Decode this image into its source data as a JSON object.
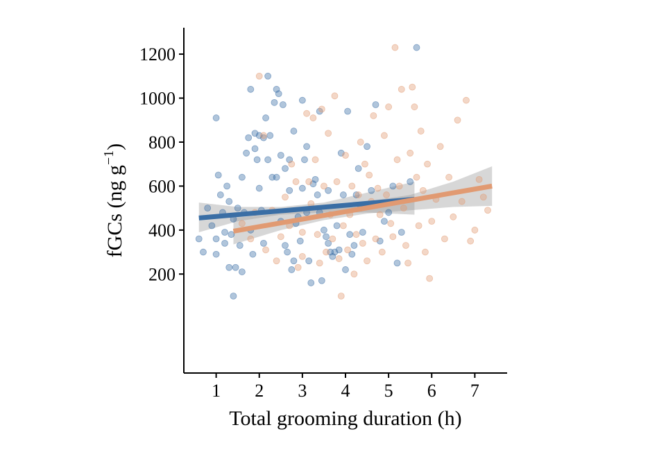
{
  "chart_data": {
    "type": "scatter",
    "title": "",
    "xlabel": "Total grooming duration (h)",
    "ylabel_main": "fGCs (ng g",
    "ylabel_sup": "−1",
    "ylabel_close": ")",
    "xlim": [
      0.25,
      7.75
    ],
    "ylim": [
      -250,
      1320
    ],
    "xticks": [
      1,
      2,
      3,
      4,
      5,
      6,
      7
    ],
    "yticks": [
      200,
      400,
      600,
      800,
      1000,
      1200
    ],
    "grid": false,
    "legend": "none",
    "series": [
      {
        "color": "#3a6ea5",
        "fit": {
          "x": [
            0.6,
            5.6
          ],
          "y": [
            455,
            540
          ]
        },
        "band": {
          "x": [
            0.6,
            1.5,
            2.5,
            3.5,
            4.5,
            5.6
          ],
          "lower": [
            390,
            440,
            470,
            480,
            480,
            470
          ],
          "upper": [
            525,
            505,
            505,
            525,
            570,
            620
          ]
        },
        "points": [
          [
            0.6,
            360
          ],
          [
            0.7,
            300
          ],
          [
            0.8,
            500
          ],
          [
            0.9,
            420
          ],
          [
            1.0,
            910
          ],
          [
            1.0,
            360
          ],
          [
            1.0,
            290
          ],
          [
            1.05,
            650
          ],
          [
            1.1,
            560
          ],
          [
            1.15,
            480
          ],
          [
            1.2,
            390
          ],
          [
            1.2,
            340
          ],
          [
            1.25,
            600
          ],
          [
            1.3,
            230
          ],
          [
            1.3,
            530
          ],
          [
            1.35,
            380
          ],
          [
            1.4,
            100
          ],
          [
            1.4,
            450
          ],
          [
            1.45,
            230
          ],
          [
            1.5,
            500
          ],
          [
            1.55,
            330
          ],
          [
            1.6,
            210
          ],
          [
            1.6,
            640
          ],
          [
            1.65,
            480
          ],
          [
            1.7,
            750
          ],
          [
            1.75,
            820
          ],
          [
            1.8,
            1040
          ],
          [
            1.8,
            400
          ],
          [
            1.85,
            290
          ],
          [
            1.9,
            840
          ],
          [
            1.9,
            770
          ],
          [
            1.95,
            720
          ],
          [
            2.0,
            830
          ],
          [
            2.0,
            590
          ],
          [
            2.05,
            490
          ],
          [
            2.1,
            340
          ],
          [
            2.1,
            820
          ],
          [
            2.15,
            910
          ],
          [
            2.2,
            720
          ],
          [
            2.2,
            1100
          ],
          [
            2.25,
            830
          ],
          [
            2.3,
            640
          ],
          [
            2.35,
            980
          ],
          [
            2.4,
            1040
          ],
          [
            2.4,
            640
          ],
          [
            2.45,
            1020
          ],
          [
            2.5,
            740
          ],
          [
            2.5,
            440
          ],
          [
            2.55,
            970
          ],
          [
            2.6,
            680
          ],
          [
            2.6,
            330
          ],
          [
            2.65,
            300
          ],
          [
            2.7,
            580
          ],
          [
            2.7,
            720
          ],
          [
            2.75,
            220
          ],
          [
            2.8,
            850
          ],
          [
            2.8,
            260
          ],
          [
            2.85,
            430
          ],
          [
            2.9,
            460
          ],
          [
            2.95,
            350
          ],
          [
            3.0,
            990
          ],
          [
            3.0,
            590
          ],
          [
            3.05,
            720
          ],
          [
            3.1,
            780
          ],
          [
            3.1,
            480
          ],
          [
            3.15,
            260
          ],
          [
            3.2,
            160
          ],
          [
            3.25,
            610
          ],
          [
            3.3,
            630
          ],
          [
            3.35,
            560
          ],
          [
            3.4,
            940
          ],
          [
            3.4,
            480
          ],
          [
            3.45,
            170
          ],
          [
            3.5,
            400
          ],
          [
            3.55,
            370
          ],
          [
            3.6,
            580
          ],
          [
            3.6,
            340
          ],
          [
            3.65,
            300
          ],
          [
            3.7,
            280
          ],
          [
            3.75,
            300
          ],
          [
            3.8,
            420
          ],
          [
            3.85,
            310
          ],
          [
            3.9,
            750
          ],
          [
            3.95,
            560
          ],
          [
            4.0,
            220
          ],
          [
            4.05,
            940
          ],
          [
            4.1,
            380
          ],
          [
            4.15,
            290
          ],
          [
            4.2,
            330
          ],
          [
            4.25,
            560
          ],
          [
            4.3,
            680
          ],
          [
            4.35,
            500
          ],
          [
            4.4,
            390
          ],
          [
            4.5,
            780
          ],
          [
            4.6,
            580
          ],
          [
            4.7,
            970
          ],
          [
            4.8,
            350
          ],
          [
            4.9,
            440
          ],
          [
            5.0,
            480
          ],
          [
            5.1,
            600
          ],
          [
            5.2,
            250
          ],
          [
            5.3,
            390
          ],
          [
            5.5,
            620
          ],
          [
            5.65,
            1230
          ]
        ]
      },
      {
        "color": "#e19a72",
        "fit": {
          "x": [
            1.4,
            7.4
          ],
          "y": [
            395,
            600
          ]
        },
        "band": {
          "x": [
            1.4,
            2.5,
            3.5,
            4.5,
            5.5,
            6.5,
            7.4
          ],
          "lower": [
            335,
            400,
            445,
            475,
            490,
            505,
            510
          ],
          "upper": [
            455,
            475,
            505,
            530,
            560,
            620,
            690
          ]
        },
        "points": [
          [
            1.6,
            430
          ],
          [
            1.8,
            360
          ],
          [
            1.9,
            480
          ],
          [
            2.0,
            1100
          ],
          [
            2.1,
            830
          ],
          [
            2.15,
            310
          ],
          [
            2.3,
            490
          ],
          [
            2.4,
            260
          ],
          [
            2.5,
            370
          ],
          [
            2.6,
            550
          ],
          [
            2.7,
            420
          ],
          [
            2.75,
            700
          ],
          [
            2.85,
            620
          ],
          [
            2.9,
            230
          ],
          [
            3.0,
            390
          ],
          [
            3.0,
            280
          ],
          [
            3.1,
            930
          ],
          [
            3.15,
            620
          ],
          [
            3.2,
            520
          ],
          [
            3.25,
            910
          ],
          [
            3.3,
            720
          ],
          [
            3.35,
            380
          ],
          [
            3.4,
            250
          ],
          [
            3.45,
            950
          ],
          [
            3.5,
            600
          ],
          [
            3.55,
            300
          ],
          [
            3.6,
            840
          ],
          [
            3.65,
            470
          ],
          [
            3.7,
            360
          ],
          [
            3.75,
            1010
          ],
          [
            3.8,
            620
          ],
          [
            3.85,
            270
          ],
          [
            3.9,
            100
          ],
          [
            3.95,
            420
          ],
          [
            4.0,
            740
          ],
          [
            4.05,
            310
          ],
          [
            4.1,
            470
          ],
          [
            4.15,
            600
          ],
          [
            4.2,
            200
          ],
          [
            4.25,
            380
          ],
          [
            4.3,
            560
          ],
          [
            4.35,
            800
          ],
          [
            4.4,
            340
          ],
          [
            4.45,
            700
          ],
          [
            4.5,
            260
          ],
          [
            4.55,
            650
          ],
          [
            4.6,
            530
          ],
          [
            4.65,
            920
          ],
          [
            4.7,
            360
          ],
          [
            4.75,
            590
          ],
          [
            4.8,
            470
          ],
          [
            4.85,
            300
          ],
          [
            4.9,
            830
          ],
          [
            4.95,
            560
          ],
          [
            5.0,
            960
          ],
          [
            5.05,
            430
          ],
          [
            5.1,
            370
          ],
          [
            5.15,
            1230
          ],
          [
            5.2,
            720
          ],
          [
            5.25,
            600
          ],
          [
            5.3,
            1040
          ],
          [
            5.35,
            500
          ],
          [
            5.4,
            330
          ],
          [
            5.45,
            250
          ],
          [
            5.5,
            750
          ],
          [
            5.55,
            1050
          ],
          [
            5.6,
            960
          ],
          [
            5.65,
            640
          ],
          [
            5.7,
            420
          ],
          [
            5.75,
            850
          ],
          [
            5.8,
            580
          ],
          [
            5.85,
            300
          ],
          [
            5.9,
            700
          ],
          [
            5.95,
            180
          ],
          [
            6.0,
            440
          ],
          [
            6.1,
            540
          ],
          [
            6.2,
            780
          ],
          [
            6.3,
            360
          ],
          [
            6.4,
            640
          ],
          [
            6.5,
            460
          ],
          [
            6.6,
            900
          ],
          [
            6.7,
            530
          ],
          [
            6.8,
            990
          ],
          [
            6.9,
            350
          ],
          [
            7.0,
            400
          ],
          [
            7.1,
            630
          ],
          [
            7.2,
            550
          ],
          [
            7.3,
            490
          ]
        ]
      }
    ]
  }
}
